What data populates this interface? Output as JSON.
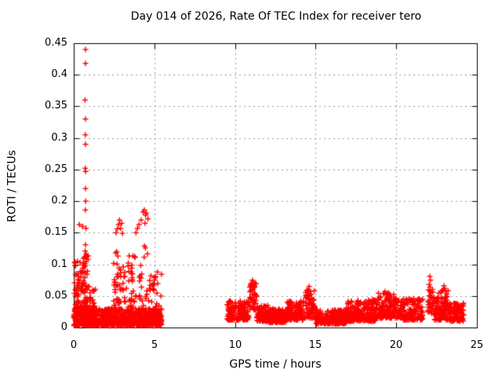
{
  "chart_data": {
    "type": "scatter",
    "title": "Day 014 of 2026, Rate Of TEC Index for receiver tero",
    "xlabel": "GPS time / hours",
    "ylabel": "ROTI / TECUs",
    "xlim": [
      0,
      25
    ],
    "ylim": [
      0,
      0.45
    ],
    "xticks": [
      0,
      5,
      10,
      15,
      20,
      25
    ],
    "xtick_labels": [
      "0",
      "5",
      "10",
      "15",
      "20",
      "25"
    ],
    "yticks": [
      0,
      0.05,
      0.1,
      0.15,
      0.2,
      0.25,
      0.3,
      0.35,
      0.4,
      0.45
    ],
    "ytick_labels": [
      "0",
      "0.05",
      "0.1",
      "0.15",
      "0.2",
      "0.25",
      "0.3",
      "0.35",
      "0.4",
      "0.45"
    ],
    "legend": "none",
    "grid": "dotted",
    "grid_color": "#989898",
    "axis_color": "#000000",
    "marker": {
      "shape": "plus",
      "color": "#ff0000",
      "size": 7
    },
    "data_gaps": [
      [
        5.5,
        9.5
      ],
      [
        21.7,
        21.95
      ]
    ],
    "outliers": [
      [
        0.73,
        0.44
      ],
      [
        0.73,
        0.418
      ],
      [
        0.7,
        0.36
      ],
      [
        0.73,
        0.33
      ],
      [
        0.72,
        0.305
      ],
      [
        0.73,
        0.29
      ],
      [
        0.71,
        0.252
      ],
      [
        0.74,
        0.247
      ],
      [
        0.73,
        0.22
      ],
      [
        0.74,
        0.2
      ],
      [
        0.72,
        0.186
      ],
      [
        0.35,
        0.163
      ],
      [
        0.55,
        0.16
      ],
      [
        0.76,
        0.157
      ],
      [
        0.73,
        0.131
      ],
      [
        0.71,
        0.121
      ],
      [
        0.74,
        0.111
      ],
      [
        0.69,
        0.101
      ],
      [
        0.66,
        0.096
      ],
      [
        2.62,
        0.15
      ],
      [
        2.7,
        0.156
      ],
      [
        2.78,
        0.163
      ],
      [
        2.84,
        0.17
      ],
      [
        2.9,
        0.157
      ],
      [
        2.97,
        0.165
      ],
      [
        3.02,
        0.149
      ],
      [
        3.86,
        0.15
      ],
      [
        3.95,
        0.157
      ],
      [
        4.05,
        0.163
      ],
      [
        4.18,
        0.17
      ],
      [
        4.3,
        0.183
      ],
      [
        4.38,
        0.186
      ],
      [
        4.45,
        0.178
      ],
      [
        4.52,
        0.181
      ],
      [
        4.6,
        0.172
      ],
      [
        4.42,
        0.165
      ],
      [
        11.08,
        0.075
      ],
      [
        11.15,
        0.071
      ],
      [
        11.05,
        0.067
      ],
      [
        11.1,
        0.063
      ],
      [
        14.6,
        0.065
      ],
      [
        14.55,
        0.06
      ],
      [
        14.68,
        0.057
      ],
      [
        19.3,
        0.057
      ],
      [
        19.5,
        0.055
      ],
      [
        22.08,
        0.081
      ],
      [
        22.12,
        0.075
      ],
      [
        22.04,
        0.068
      ],
      [
        22.1,
        0.064
      ],
      [
        22.95,
        0.066
      ],
      [
        23.0,
        0.062
      ],
      [
        23.05,
        0.058
      ]
    ],
    "segments": [
      {
        "x0": 0.0,
        "x1": 5.45,
        "n": 850,
        "y0": 0.003,
        "y1": 0.03,
        "bias": 1.6
      },
      {
        "x0": 0.03,
        "x1": 0.5,
        "n": 65,
        "y0": 0.025,
        "y1": 0.105,
        "bias": 1.7
      },
      {
        "x0": 0.55,
        "x1": 0.92,
        "n": 55,
        "y0": 0.025,
        "y1": 0.125,
        "bias": 1.7
      },
      {
        "x0": 0.95,
        "x1": 1.35,
        "n": 28,
        "y0": 0.02,
        "y1": 0.07,
        "bias": 1.6
      },
      {
        "x0": 2.45,
        "x1": 2.8,
        "n": 26,
        "y0": 0.03,
        "y1": 0.125,
        "bias": 1.4
      },
      {
        "x0": 2.8,
        "x1": 3.3,
        "n": 22,
        "y0": 0.03,
        "y1": 0.1,
        "bias": 1.4
      },
      {
        "x0": 3.3,
        "x1": 3.95,
        "n": 30,
        "y0": 0.03,
        "y1": 0.115,
        "bias": 1.5
      },
      {
        "x0": 4.0,
        "x1": 4.75,
        "n": 26,
        "y0": 0.03,
        "y1": 0.13,
        "bias": 1.5
      },
      {
        "x0": 4.75,
        "x1": 5.45,
        "n": 40,
        "y0": 0.012,
        "y1": 0.088,
        "bias": 1.8
      },
      {
        "x0": 9.5,
        "x1": 10.85,
        "n": 150,
        "y0": 0.012,
        "y1": 0.042,
        "bias": 1.7
      },
      {
        "x0": 10.9,
        "x1": 11.35,
        "n": 45,
        "y0": 0.028,
        "y1": 0.074,
        "bias": 1.3
      },
      {
        "x0": 11.35,
        "x1": 12.1,
        "n": 90,
        "y0": 0.01,
        "y1": 0.035,
        "bias": 1.7
      },
      {
        "x0": 12.1,
        "x1": 13.2,
        "n": 130,
        "y0": 0.008,
        "y1": 0.03,
        "bias": 1.6
      },
      {
        "x0": 13.2,
        "x1": 14.25,
        "n": 120,
        "y0": 0.012,
        "y1": 0.042,
        "bias": 1.6
      },
      {
        "x0": 14.3,
        "x1": 15.05,
        "n": 70,
        "y0": 0.015,
        "y1": 0.06,
        "bias": 1.5
      },
      {
        "x0": 15.05,
        "x1": 16.9,
        "n": 200,
        "y0": 0.006,
        "y1": 0.028,
        "bias": 1.6
      },
      {
        "x0": 16.9,
        "x1": 18.7,
        "n": 200,
        "y0": 0.01,
        "y1": 0.044,
        "bias": 1.7
      },
      {
        "x0": 18.7,
        "x1": 19.9,
        "n": 130,
        "y0": 0.015,
        "y1": 0.055,
        "bias": 1.5
      },
      {
        "x0": 19.9,
        "x1": 20.45,
        "n": 60,
        "y0": 0.015,
        "y1": 0.046,
        "bias": 1.5
      },
      {
        "x0": 20.45,
        "x1": 21.65,
        "n": 120,
        "y0": 0.012,
        "y1": 0.046,
        "bias": 1.6
      },
      {
        "x0": 21.95,
        "x1": 22.35,
        "n": 30,
        "y0": 0.022,
        "y1": 0.062,
        "bias": 1.3
      },
      {
        "x0": 22.35,
        "x1": 23.25,
        "n": 110,
        "y0": 0.012,
        "y1": 0.06,
        "bias": 1.7
      },
      {
        "x0": 23.25,
        "x1": 24.2,
        "n": 110,
        "y0": 0.01,
        "y1": 0.04,
        "bias": 1.6
      }
    ]
  }
}
